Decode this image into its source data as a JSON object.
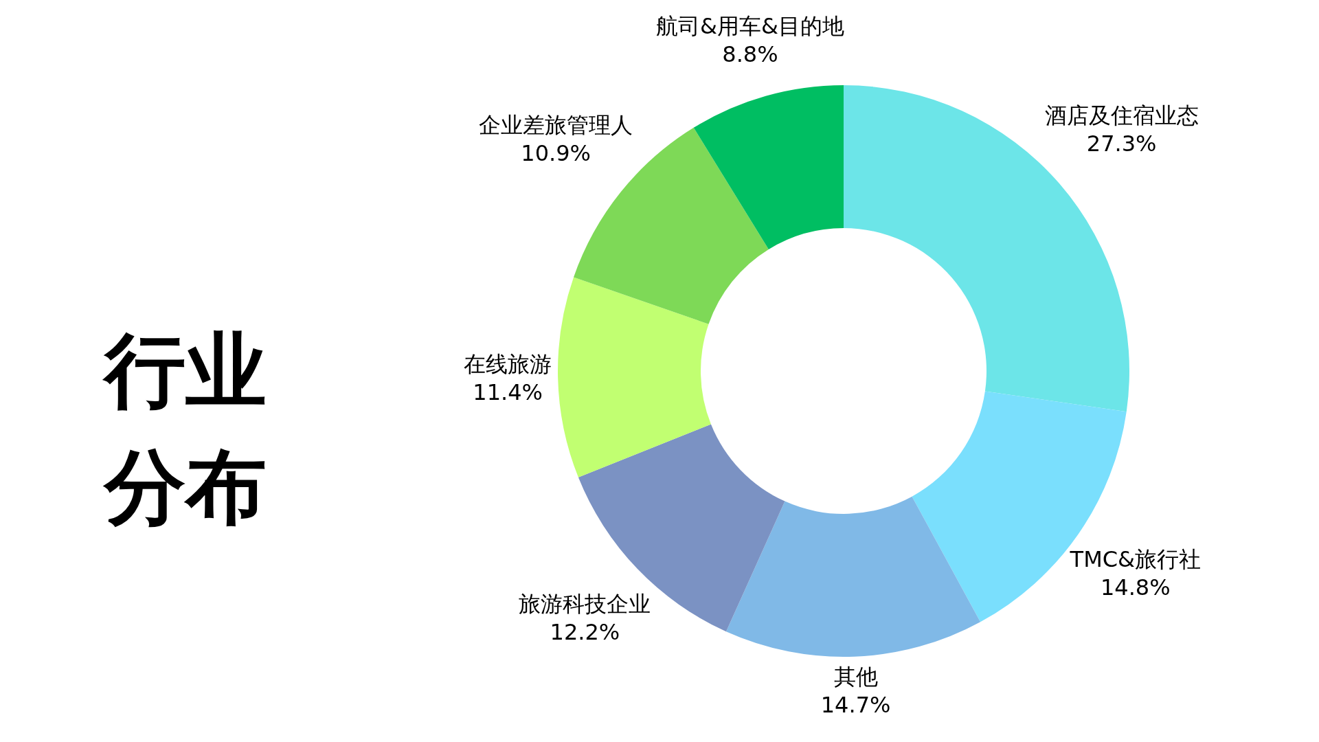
{
  "chart_data": {
    "type": "donut",
    "title": "行业分布",
    "categories": [
      "酒店及住宿业态",
      "TMC&旅行社",
      "其他",
      "旅游科技企业",
      "在线旅游",
      "企业差旅管理人",
      "航司&用车&目的地"
    ],
    "values": [
      27.3,
      14.8,
      14.7,
      12.2,
      11.4,
      10.9,
      8.8
    ],
    "value_labels": [
      "27.3%",
      "14.8%",
      "14.7%",
      "12.2%",
      "11.4%",
      "10.9%",
      "8.8%"
    ],
    "colors": [
      "#6ce5e8",
      "#7adffd",
      "#80b9e7",
      "#7b92c3",
      "#c1ff71",
      "#7ed957",
      "#00be62"
    ]
  }
}
